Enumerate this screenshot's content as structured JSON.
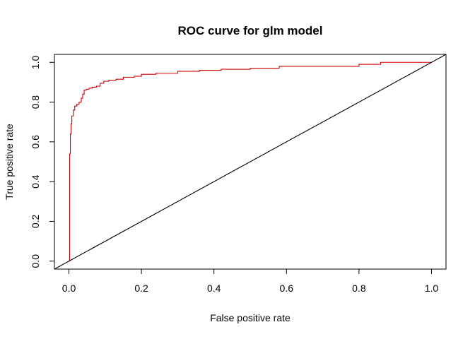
{
  "chart_data": {
    "type": "line",
    "title": "ROC curve for glm model",
    "xlabel": "False positive rate",
    "ylabel": "True positive rate",
    "xlim": [
      -0.04,
      1.04
    ],
    "ylim": [
      -0.04,
      1.04
    ],
    "x_ticks": [
      0.0,
      0.2,
      0.4,
      0.6,
      0.8,
      1.0
    ],
    "y_ticks": [
      0.0,
      0.2,
      0.4,
      0.6,
      0.8,
      1.0
    ],
    "x_tick_labels": [
      "0.0",
      "0.2",
      "0.4",
      "0.6",
      "0.8",
      "1.0"
    ],
    "y_tick_labels": [
      "0.0",
      "0.2",
      "0.4",
      "0.6",
      "0.8",
      "1.0"
    ],
    "grid": false,
    "legend": "none",
    "series": [
      {
        "color": "#cc0000",
        "step": true,
        "x": [
          0.0,
          0.002,
          0.004,
          0.006,
          0.008,
          0.012,
          0.016,
          0.022,
          0.028,
          0.034,
          0.038,
          0.042,
          0.048,
          0.056,
          0.064,
          0.076,
          0.086,
          0.096,
          0.11,
          0.13,
          0.15,
          0.18,
          0.2,
          0.24,
          0.3,
          0.36,
          0.42,
          0.5,
          0.58,
          0.66,
          0.74,
          0.8,
          0.86,
          0.93,
          1.0
        ],
        "y": [
          0.0,
          0.54,
          0.64,
          0.69,
          0.73,
          0.76,
          0.78,
          0.79,
          0.8,
          0.82,
          0.84,
          0.86,
          0.865,
          0.87,
          0.875,
          0.88,
          0.895,
          0.905,
          0.91,
          0.915,
          0.925,
          0.93,
          0.94,
          0.945,
          0.955,
          0.96,
          0.965,
          0.97,
          0.98,
          0.98,
          0.98,
          0.99,
          1.0,
          1.0,
          1.0
        ]
      },
      {
        "color": "#000000",
        "x": [
          -0.04,
          1.04
        ],
        "y": [
          -0.04,
          1.04
        ]
      }
    ]
  }
}
